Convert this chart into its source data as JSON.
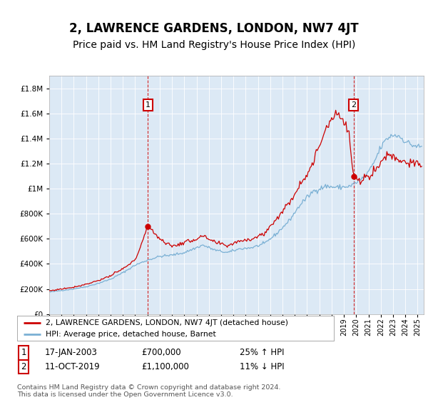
{
  "title": "2, LAWRENCE GARDENS, LONDON, NW7 4JT",
  "subtitle": "Price paid vs. HM Land Registry's House Price Index (HPI)",
  "title_fontsize": 12,
  "subtitle_fontsize": 10,
  "background_color": "#dce9f5",
  "fig_bg_color": "#ffffff",
  "red_color": "#cc0000",
  "blue_color": "#7ab0d4",
  "sale1_date": 2003.04,
  "sale1_price": 700000,
  "sale1_text": "17-JAN-2003",
  "sale1_price_text": "£700,000",
  "sale1_pct": "25% ↑ HPI",
  "sale2_date": 2019.78,
  "sale2_price": 1100000,
  "sale2_text": "11-OCT-2019",
  "sale2_price_text": "£1,100,000",
  "sale2_pct": "11% ↓ HPI",
  "ylim_max": 1900000,
  "xlim_start": 1995.0,
  "xlim_end": 2025.5,
  "legend_line1": "2, LAWRENCE GARDENS, LONDON, NW7 4JT (detached house)",
  "legend_line2": "HPI: Average price, detached house, Barnet",
  "footnote": "Contains HM Land Registry data © Crown copyright and database right 2024.\nThis data is licensed under the Open Government Licence v3.0."
}
